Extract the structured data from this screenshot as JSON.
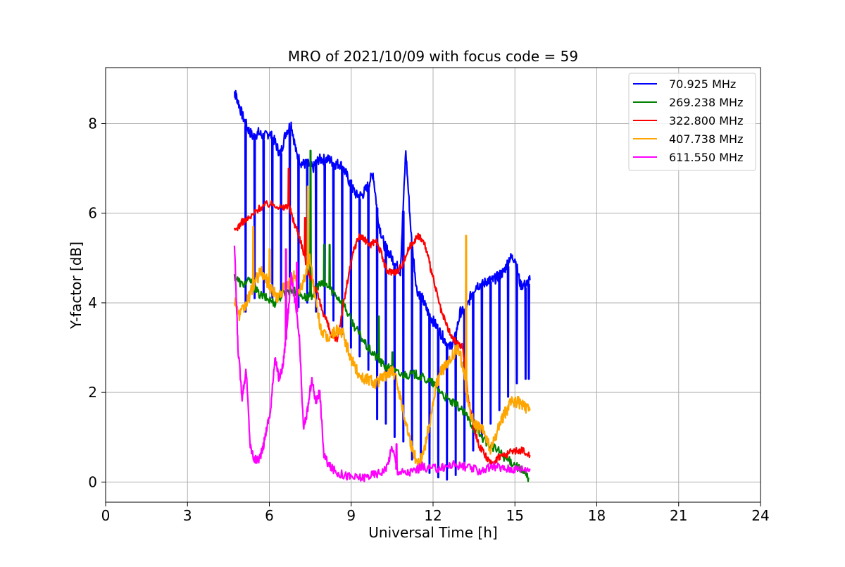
{
  "chart_data": {
    "type": "line",
    "title": "MRO of 2021/10/09 with focus code = 59",
    "xlabel": "Universal Time [h]",
    "ylabel": "Y-factor [dB]",
    "xlim": [
      0,
      24
    ],
    "ylim": [
      -0.45,
      9.25
    ],
    "xticks": [
      0,
      3,
      6,
      9,
      12,
      15,
      18,
      21,
      24
    ],
    "yticks": [
      0,
      2,
      4,
      6,
      8
    ],
    "grid": true,
    "legend_position": "top-right",
    "series": [
      {
        "name": " 70.925 MHz",
        "color": "#0000ff",
        "x": [
          4.72,
          4.8,
          5.0,
          5.2,
          5.4,
          5.6,
          5.8,
          6.0,
          6.2,
          6.4,
          6.6,
          6.8,
          7.0,
          7.2,
          7.4,
          7.6,
          7.8,
          8.0,
          8.2,
          8.4,
          8.6,
          8.8,
          9.0,
          9.2,
          9.4,
          9.6,
          9.8,
          10.0,
          10.2,
          10.4,
          10.6,
          10.8,
          11.0,
          11.2,
          11.4,
          11.6,
          11.8,
          12.0,
          12.2,
          12.4,
          12.6,
          12.8,
          13.0,
          13.2,
          13.4,
          13.6,
          13.8,
          14.0,
          14.2,
          14.4,
          14.6,
          14.8,
          15.0,
          15.2,
          15.4,
          15.55
        ],
        "y": [
          8.7,
          8.6,
          8.2,
          7.9,
          7.7,
          7.8,
          7.7,
          7.8,
          7.6,
          7.3,
          7.8,
          8.0,
          7.3,
          7.1,
          7.1,
          7.0,
          7.2,
          7.2,
          7.2,
          7.1,
          7.1,
          6.9,
          6.6,
          6.4,
          6.4,
          6.6,
          6.9,
          5.8,
          5.3,
          5.1,
          4.9,
          4.7,
          7.4,
          5.5,
          4.3,
          4.1,
          3.8,
          3.6,
          3.4,
          3.2,
          3.0,
          3.2,
          3.8,
          3.8,
          4.2,
          4.4,
          4.4,
          4.5,
          4.5,
          4.6,
          4.7,
          5.0,
          5.0,
          4.4,
          4.4,
          4.5
        ],
        "dips": [
          [
            5.12,
            3.8
          ],
          [
            5.45,
            4.1
          ],
          [
            5.78,
            4.2
          ],
          [
            6.1,
            4.1
          ],
          [
            6.42,
            4.2
          ],
          [
            6.74,
            4.3
          ],
          [
            7.06,
            3.9
          ],
          [
            7.38,
            4.0
          ],
          [
            7.7,
            3.8
          ],
          [
            8.02,
            3.7
          ],
          [
            8.34,
            3.6
          ],
          [
            8.66,
            3.3
          ],
          [
            8.98,
            3.0
          ],
          [
            9.3,
            2.8
          ],
          [
            9.62,
            2.5
          ],
          [
            9.94,
            1.4
          ],
          [
            10.26,
            1.3
          ],
          [
            10.58,
            1.0
          ],
          [
            10.9,
            0.9
          ],
          [
            11.22,
            0.5
          ],
          [
            11.54,
            0.3
          ],
          [
            11.86,
            0.2
          ],
          [
            12.18,
            0.1
          ],
          [
            12.5,
            0.05
          ],
          [
            12.82,
            0.15
          ],
          [
            13.14,
            0.4
          ],
          [
            13.46,
            0.7
          ],
          [
            13.78,
            1.0
          ],
          [
            14.1,
            1.3
          ],
          [
            14.42,
            1.6
          ],
          [
            14.74,
            1.9
          ],
          [
            15.06,
            2.2
          ],
          [
            15.38,
            2.3
          ],
          [
            15.5,
            2.3
          ]
        ]
      },
      {
        "name": "269.238 MHz",
        "color": "#008000",
        "x": [
          4.72,
          5.0,
          5.3,
          5.6,
          5.9,
          6.2,
          6.5,
          6.8,
          7.1,
          7.4,
          7.6,
          7.8,
          8.1,
          8.4,
          8.7,
          9.0,
          9.3,
          9.6,
          9.9,
          10.2,
          10.5,
          10.8,
          11.1,
          11.4,
          11.7,
          12.0,
          12.3,
          12.6,
          12.9,
          13.2,
          13.5,
          13.8,
          14.1,
          14.4,
          14.7,
          15.0,
          15.3,
          15.5
        ],
        "y": [
          4.6,
          4.4,
          4.5,
          4.2,
          4.1,
          4.0,
          4.2,
          4.3,
          4.2,
          4.1,
          4.2,
          4.4,
          4.4,
          4.2,
          4.0,
          3.6,
          3.3,
          3.0,
          2.8,
          2.6,
          2.5,
          2.4,
          2.4,
          2.4,
          2.3,
          2.2,
          2.0,
          1.8,
          1.7,
          1.5,
          1.2,
          1.0,
          0.8,
          0.7,
          0.5,
          0.4,
          0.2,
          0.1
        ],
        "spikes": [
          [
            7.5,
            7.4
          ],
          [
            8.0,
            5.3
          ],
          [
            8.2,
            5.3
          ],
          [
            10.0,
            3.7
          ],
          [
            10.5,
            2.9
          ]
        ]
      },
      {
        "name": "322.800 MHz",
        "color": "#ff0000",
        "x": [
          4.72,
          5.0,
          5.3,
          5.6,
          5.9,
          6.2,
          6.5,
          6.7,
          6.9,
          7.1,
          7.3,
          7.5,
          7.7,
          7.9,
          8.1,
          8.3,
          8.5,
          8.7,
          8.9,
          9.1,
          9.3,
          9.5,
          9.7,
          9.9,
          10.1,
          10.3,
          10.5,
          10.7,
          10.9,
          11.1,
          11.3,
          11.5,
          11.7,
          11.9,
          12.1,
          12.3,
          12.5,
          12.7,
          12.9,
          13.1,
          13.3,
          13.5,
          13.7,
          13.9,
          14.1,
          14.3,
          14.5,
          14.7,
          14.9,
          15.1,
          15.3,
          15.55
        ],
        "y": [
          5.6,
          5.8,
          5.9,
          6.1,
          6.2,
          6.2,
          6.1,
          6.2,
          5.8,
          5.5,
          5.0,
          4.6,
          4.3,
          3.9,
          3.6,
          3.2,
          3.2,
          3.9,
          4.6,
          5.2,
          5.5,
          5.4,
          5.3,
          5.4,
          5.1,
          4.7,
          4.7,
          4.7,
          4.9,
          5.2,
          5.4,
          5.5,
          5.3,
          4.8,
          4.3,
          3.8,
          3.5,
          3.2,
          3.1,
          3.0,
          1.8,
          1.2,
          0.8,
          0.6,
          0.4,
          0.5,
          0.6,
          0.6,
          0.7,
          0.7,
          0.7,
          0.6
        ],
        "spikes": [
          [
            6.7,
            7.0
          ],
          [
            7.3,
            5.9
          ]
        ]
      },
      {
        "name": "407.738 MHz",
        "color": "#ffa500",
        "x": [
          4.72,
          4.9,
          5.1,
          5.3,
          5.5,
          5.7,
          5.9,
          6.1,
          6.3,
          6.5,
          6.7,
          6.9,
          7.1,
          7.3,
          7.5,
          7.7,
          7.9,
          8.1,
          8.3,
          8.5,
          8.7,
          8.9,
          9.1,
          9.3,
          9.5,
          9.7,
          9.9,
          10.1,
          10.3,
          10.5,
          10.7,
          10.9,
          11.1,
          11.3,
          11.5,
          11.7,
          11.9,
          12.1,
          12.3,
          12.5,
          12.7,
          12.9,
          13.1,
          13.3,
          13.5,
          13.7,
          13.9,
          14.1,
          14.3,
          14.5,
          14.7,
          14.9,
          15.1,
          15.3,
          15.55
        ],
        "y": [
          4.1,
          3.7,
          3.9,
          4.2,
          4.5,
          4.7,
          4.5,
          4.3,
          4.1,
          4.3,
          4.4,
          4.6,
          4.2,
          4.6,
          5.0,
          4.0,
          3.4,
          3.2,
          3.3,
          3.4,
          3.3,
          2.9,
          2.6,
          2.4,
          2.3,
          2.3,
          2.2,
          2.3,
          2.4,
          2.5,
          2.2,
          1.6,
          1.1,
          0.6,
          0.4,
          0.8,
          1.4,
          2.1,
          2.5,
          2.6,
          2.8,
          3.0,
          2.6,
          1.7,
          1.3,
          1.2,
          1.1,
          0.7,
          1.0,
          1.4,
          1.6,
          1.8,
          1.8,
          1.7,
          1.6
        ],
        "spikes": [
          [
            5.4,
            5.7
          ],
          [
            6.0,
            5.2
          ],
          [
            7.4,
            6.6
          ],
          [
            13.2,
            5.5
          ]
        ]
      },
      {
        "name": "611.550 MHz",
        "color": "#ff00ff",
        "x": [
          4.72,
          4.85,
          5.0,
          5.15,
          5.3,
          5.45,
          5.6,
          5.75,
          5.9,
          6.05,
          6.2,
          6.35,
          6.5,
          6.65,
          6.8,
          6.95,
          7.1,
          7.25,
          7.4,
          7.55,
          7.7,
          7.85,
          8.0,
          8.2,
          8.5,
          8.8,
          9.1,
          9.4,
          9.7,
          10.0,
          10.3,
          10.5,
          10.7,
          11.0,
          11.3,
          11.6,
          11.9,
          12.2,
          12.5,
          12.8,
          13.1,
          13.4,
          13.7,
          14.0,
          14.3,
          14.6,
          14.9,
          15.2,
          15.55
        ],
        "y": [
          5.3,
          3.0,
          1.9,
          2.5,
          0.8,
          0.5,
          0.5,
          0.7,
          1.2,
          1.6,
          2.8,
          2.3,
          2.6,
          3.5,
          4.6,
          4.0,
          3.2,
          1.2,
          1.6,
          2.3,
          1.8,
          2.0,
          0.6,
          0.35,
          0.2,
          0.15,
          0.1,
          0.1,
          0.15,
          0.2,
          0.3,
          0.8,
          0.25,
          0.2,
          0.25,
          0.35,
          0.3,
          0.3,
          0.35,
          0.4,
          0.35,
          0.3,
          0.25,
          0.3,
          0.35,
          0.3,
          0.3,
          0.3,
          0.3
        ],
        "spikes": [
          [
            6.6,
            5.2
          ],
          [
            7.0,
            4.9
          ],
          [
            10.65,
            0.85
          ]
        ]
      }
    ]
  }
}
